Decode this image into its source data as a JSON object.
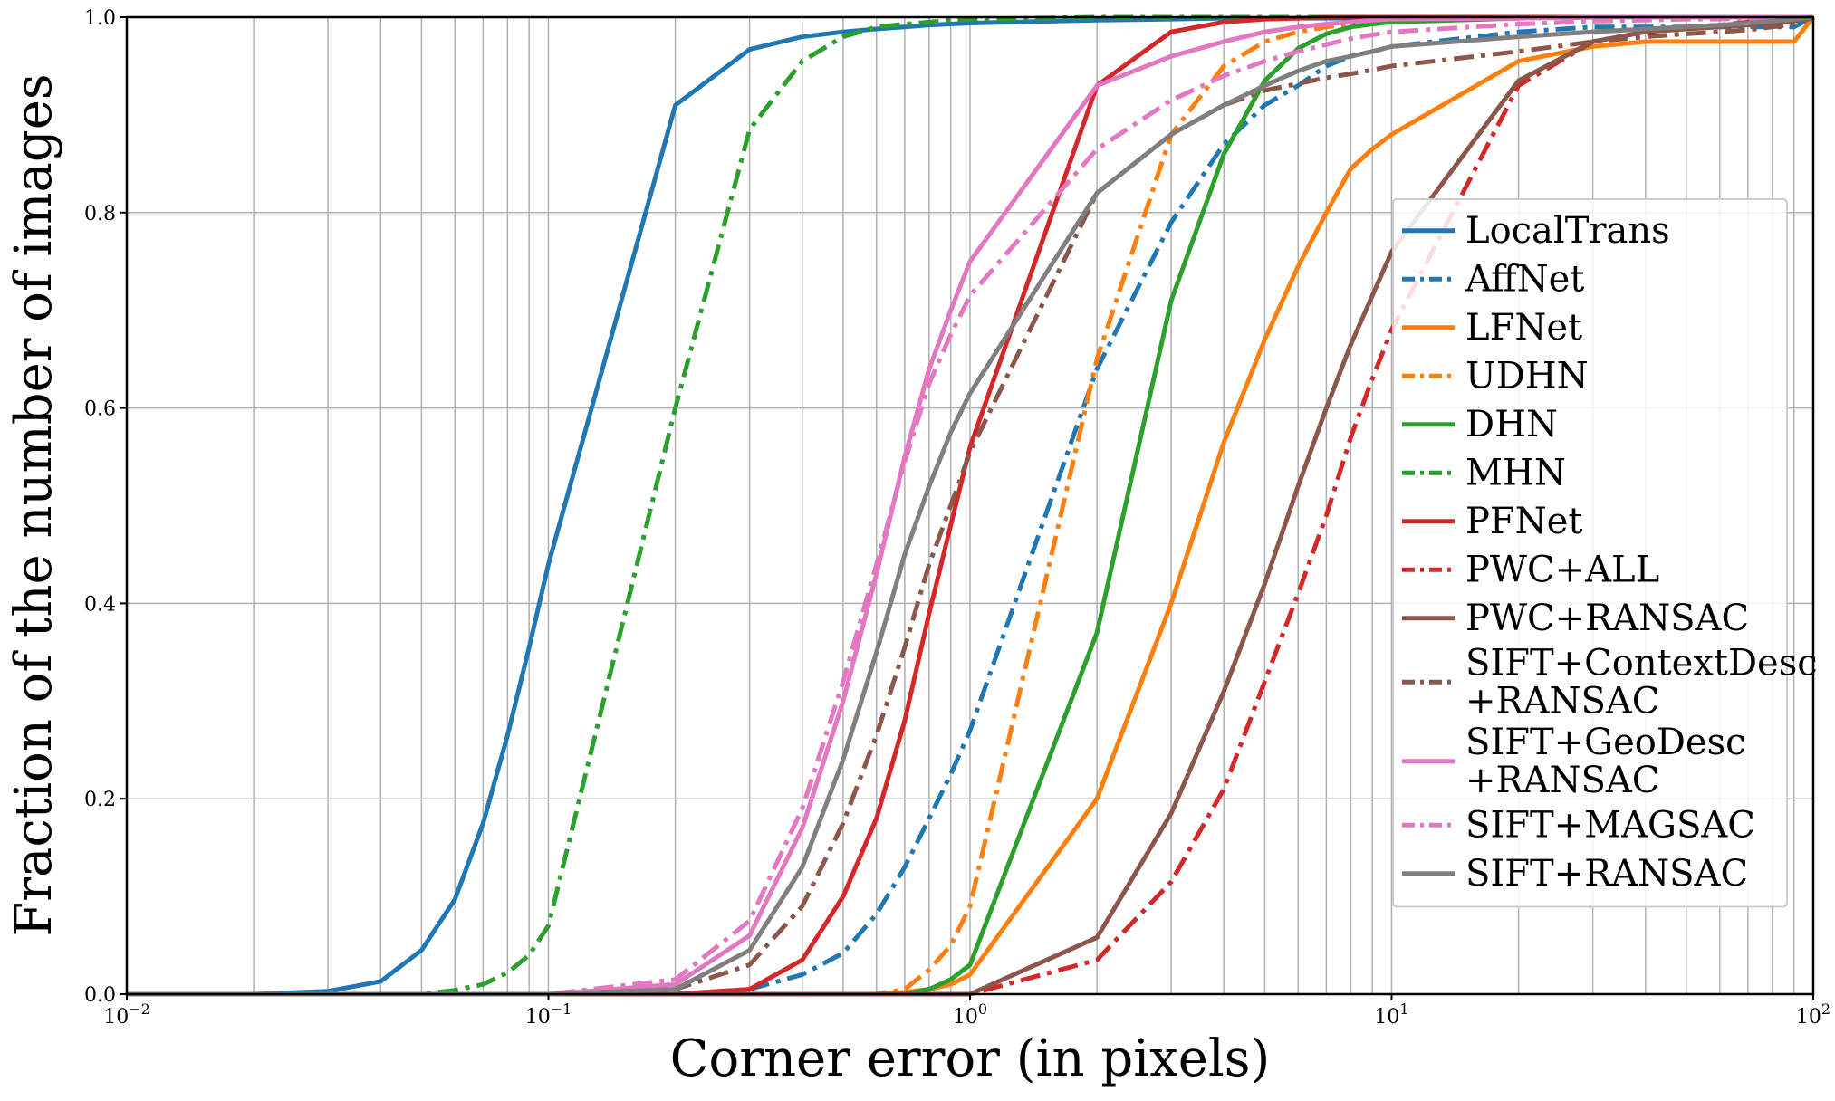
{
  "chart_data": {
    "type": "line",
    "title": "",
    "xlabel": "Corner error (in pixels)",
    "ylabel": "Fraction of the number of images",
    "xscale": "log",
    "xlim": [
      0.01,
      100
    ],
    "ylim": [
      0.0,
      1.0
    ],
    "grid": true,
    "legend_position": "right",
    "x_ticks": [
      {
        "value": 0.01,
        "base": "10",
        "exp": "−2"
      },
      {
        "value": 0.1,
        "base": "10",
        "exp": "−1"
      },
      {
        "value": 1,
        "base": "10",
        "exp": "0"
      },
      {
        "value": 10,
        "base": "10",
        "exp": "1"
      },
      {
        "value": 100,
        "base": "10",
        "exp": "2"
      }
    ],
    "y_ticks": [
      "0.0",
      "0.2",
      "0.4",
      "0.6",
      "0.8",
      "1.0"
    ],
    "x": [
      0.01,
      0.02,
      0.03,
      0.04,
      0.05,
      0.06,
      0.07,
      0.08,
      0.09,
      0.1,
      0.2,
      0.3,
      0.4,
      0.5,
      0.6,
      0.7,
      0.8,
      0.9,
      1,
      2,
      3,
      4,
      5,
      6,
      7,
      8,
      9,
      10,
      20,
      30,
      40,
      50,
      60,
      70,
      80,
      90,
      100
    ],
    "series": [
      {
        "name": "LocalTrans",
        "color": "#1f77b4",
        "dash": "solid",
        "values": [
          0,
          0.0,
          0.003,
          0.013,
          0.045,
          0.097,
          0.175,
          0.265,
          0.355,
          0.44,
          0.91,
          0.967,
          0.98,
          0.985,
          0.988,
          0.99,
          0.992,
          0.993,
          0.994,
          0.997,
          0.998,
          0.999,
          0.999,
          0.999,
          0.999,
          0.999,
          0.999,
          1.0,
          1.0,
          1.0,
          1.0,
          1.0,
          1.0,
          1.0,
          1.0,
          1.0,
          1.0
        ]
      },
      {
        "name": "AffNet",
        "color": "#1f77b4",
        "dash": "dashdot",
        "values": [
          0,
          0,
          0,
          0,
          0,
          0,
          0,
          0,
          0,
          0,
          0.0,
          0.005,
          0.02,
          0.042,
          0.082,
          0.13,
          0.18,
          0.225,
          0.27,
          0.64,
          0.79,
          0.87,
          0.91,
          0.93,
          0.95,
          0.96,
          0.965,
          0.97,
          0.985,
          0.99,
          0.99,
          0.99,
          0.99,
          0.99,
          0.99,
          0.99,
          1.0
        ]
      },
      {
        "name": "LFNet",
        "color": "#ff7f0e",
        "dash": "solid",
        "values": [
          0,
          0,
          0,
          0,
          0,
          0,
          0,
          0,
          0,
          0,
          0,
          0,
          0,
          0,
          0.0,
          0.002,
          0.005,
          0.01,
          0.02,
          0.2,
          0.4,
          0.565,
          0.67,
          0.745,
          0.8,
          0.845,
          0.865,
          0.88,
          0.955,
          0.97,
          0.975,
          0.975,
          0.975,
          0.975,
          0.975,
          0.975,
          1.0
        ]
      },
      {
        "name": "UDHN",
        "color": "#ff7f0e",
        "dash": "dashdot",
        "values": [
          0,
          0,
          0,
          0,
          0,
          0,
          0,
          0,
          0,
          0,
          0,
          0,
          0,
          0,
          0.0,
          0.005,
          0.025,
          0.05,
          0.09,
          0.65,
          0.88,
          0.95,
          0.975,
          0.985,
          0.99,
          0.993,
          0.995,
          0.997,
          0.999,
          1.0,
          1.0,
          1.0,
          1.0,
          1.0,
          1.0,
          1.0,
          1.0
        ]
      },
      {
        "name": "DHN",
        "color": "#2ca02c",
        "dash": "solid",
        "values": [
          0,
          0,
          0,
          0,
          0,
          0,
          0,
          0,
          0,
          0,
          0,
          0,
          0,
          0,
          0,
          0.0,
          0.005,
          0.015,
          0.03,
          0.37,
          0.71,
          0.86,
          0.935,
          0.968,
          0.983,
          0.99,
          0.993,
          0.995,
          0.999,
          1.0,
          1.0,
          1.0,
          1.0,
          1.0,
          1.0,
          1.0,
          1.0
        ]
      },
      {
        "name": "MHN",
        "color": "#2ca02c",
        "dash": "dashdot",
        "values": [
          0,
          0,
          0,
          0,
          0.0,
          0.004,
          0.01,
          0.022,
          0.04,
          0.07,
          0.6,
          0.885,
          0.955,
          0.98,
          0.99,
          0.993,
          0.995,
          0.997,
          0.998,
          1.0,
          1.0,
          1.0,
          1.0,
          1.0,
          1.0,
          1.0,
          1.0,
          1.0,
          1.0,
          1.0,
          1.0,
          1.0,
          1.0,
          1.0,
          1.0,
          1.0,
          1.0
        ]
      },
      {
        "name": "PFNet",
        "color": "#d62728",
        "dash": "solid",
        "values": [
          0,
          0,
          0,
          0,
          0,
          0,
          0,
          0,
          0,
          0,
          0.0,
          0.005,
          0.035,
          0.1,
          0.18,
          0.28,
          0.39,
          0.48,
          0.56,
          0.93,
          0.985,
          0.995,
          0.998,
          0.999,
          1.0,
          1.0,
          1.0,
          1.0,
          1.0,
          1.0,
          1.0,
          1.0,
          1.0,
          1.0,
          1.0,
          1.0,
          1.0
        ]
      },
      {
        "name": "PWC+ALL",
        "color": "#d62728",
        "dash": "dashdot",
        "values": [
          0,
          0,
          0,
          0,
          0,
          0,
          0,
          0,
          0,
          0,
          0,
          0,
          0,
          0,
          0,
          0,
          0,
          0,
          0.0,
          0.035,
          0.115,
          0.21,
          0.32,
          0.41,
          0.49,
          0.57,
          0.63,
          0.68,
          0.93,
          0.975,
          0.985,
          0.99,
          0.992,
          0.995,
          0.997,
          0.998,
          1.0
        ]
      },
      {
        "name": "PWC+RANSAC",
        "color": "#8c564b",
        "dash": "solid",
        "values": [
          0,
          0,
          0,
          0,
          0,
          0,
          0,
          0,
          0,
          0,
          0,
          0,
          0,
          0,
          0,
          0,
          0,
          0,
          0.0,
          0.058,
          0.185,
          0.31,
          0.42,
          0.52,
          0.6,
          0.665,
          0.715,
          0.76,
          0.935,
          0.975,
          0.985,
          0.988,
          0.99,
          0.992,
          0.994,
          0.996,
          1.0
        ]
      },
      {
        "name": "SIFT+ContextDesc\n+RANSAC",
        "color": "#8c564b",
        "dash": "dashdot",
        "values": [
          0,
          0,
          0,
          0,
          0,
          0,
          0,
          0,
          0,
          0,
          0.005,
          0.03,
          0.09,
          0.175,
          0.265,
          0.355,
          0.44,
          0.5,
          0.555,
          0.82,
          0.88,
          0.91,
          0.925,
          0.932,
          0.938,
          0.942,
          0.946,
          0.95,
          0.965,
          0.975,
          0.98,
          0.983,
          0.985,
          0.987,
          0.99,
          0.993,
          1.0
        ]
      },
      {
        "name": "SIFT+GeoDesc\n+RANSAC",
        "color": "#e377c2",
        "dash": "solid",
        "values": [
          0,
          0,
          0,
          0,
          0,
          0,
          0,
          0,
          0,
          0,
          0.01,
          0.06,
          0.17,
          0.3,
          0.43,
          0.55,
          0.64,
          0.7,
          0.75,
          0.93,
          0.96,
          0.975,
          0.985,
          0.99,
          0.993,
          0.995,
          0.997,
          0.998,
          0.999,
          1.0,
          1.0,
          1.0,
          1.0,
          1.0,
          1.0,
          1.0,
          1.0
        ]
      },
      {
        "name": "SIFT+MAGSAC",
        "color": "#e377c2",
        "dash": "dashdot",
        "values": [
          0,
          0,
          0,
          0,
          0,
          0,
          0,
          0,
          0,
          0.0,
          0.015,
          0.075,
          0.19,
          0.32,
          0.44,
          0.545,
          0.625,
          0.675,
          0.715,
          0.865,
          0.915,
          0.94,
          0.955,
          0.965,
          0.972,
          0.978,
          0.982,
          0.985,
          0.993,
          0.996,
          0.997,
          0.998,
          0.998,
          0.999,
          0.999,
          0.999,
          1.0
        ]
      },
      {
        "name": "SIFT+RANSAC",
        "color": "#7f7f7f",
        "dash": "solid",
        "values": [
          0,
          0,
          0,
          0,
          0,
          0,
          0,
          0,
          0,
          0,
          0.005,
          0.045,
          0.13,
          0.24,
          0.35,
          0.45,
          0.52,
          0.575,
          0.615,
          0.82,
          0.88,
          0.91,
          0.93,
          0.945,
          0.955,
          0.96,
          0.965,
          0.97,
          0.98,
          0.985,
          0.988,
          0.99,
          0.992,
          0.994,
          0.996,
          0.998,
          1.0
        ]
      }
    ]
  }
}
